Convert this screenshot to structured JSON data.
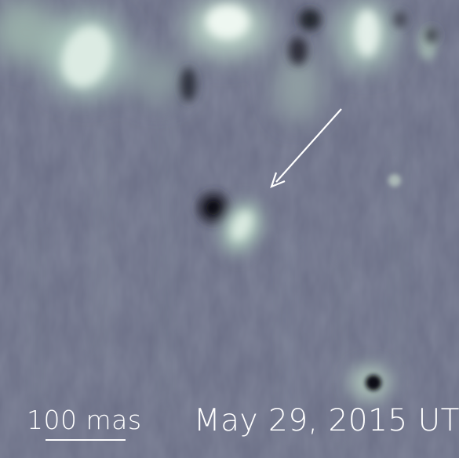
{
  "image": {
    "description_colors": {
      "background": "#6b6f86",
      "bright": "#e8f4ee",
      "dark": "#141420"
    },
    "arrow_icon": "arrow-down-left-icon"
  },
  "labels": {
    "scale": "100 mas",
    "date": "May 29, 2015 UT"
  }
}
